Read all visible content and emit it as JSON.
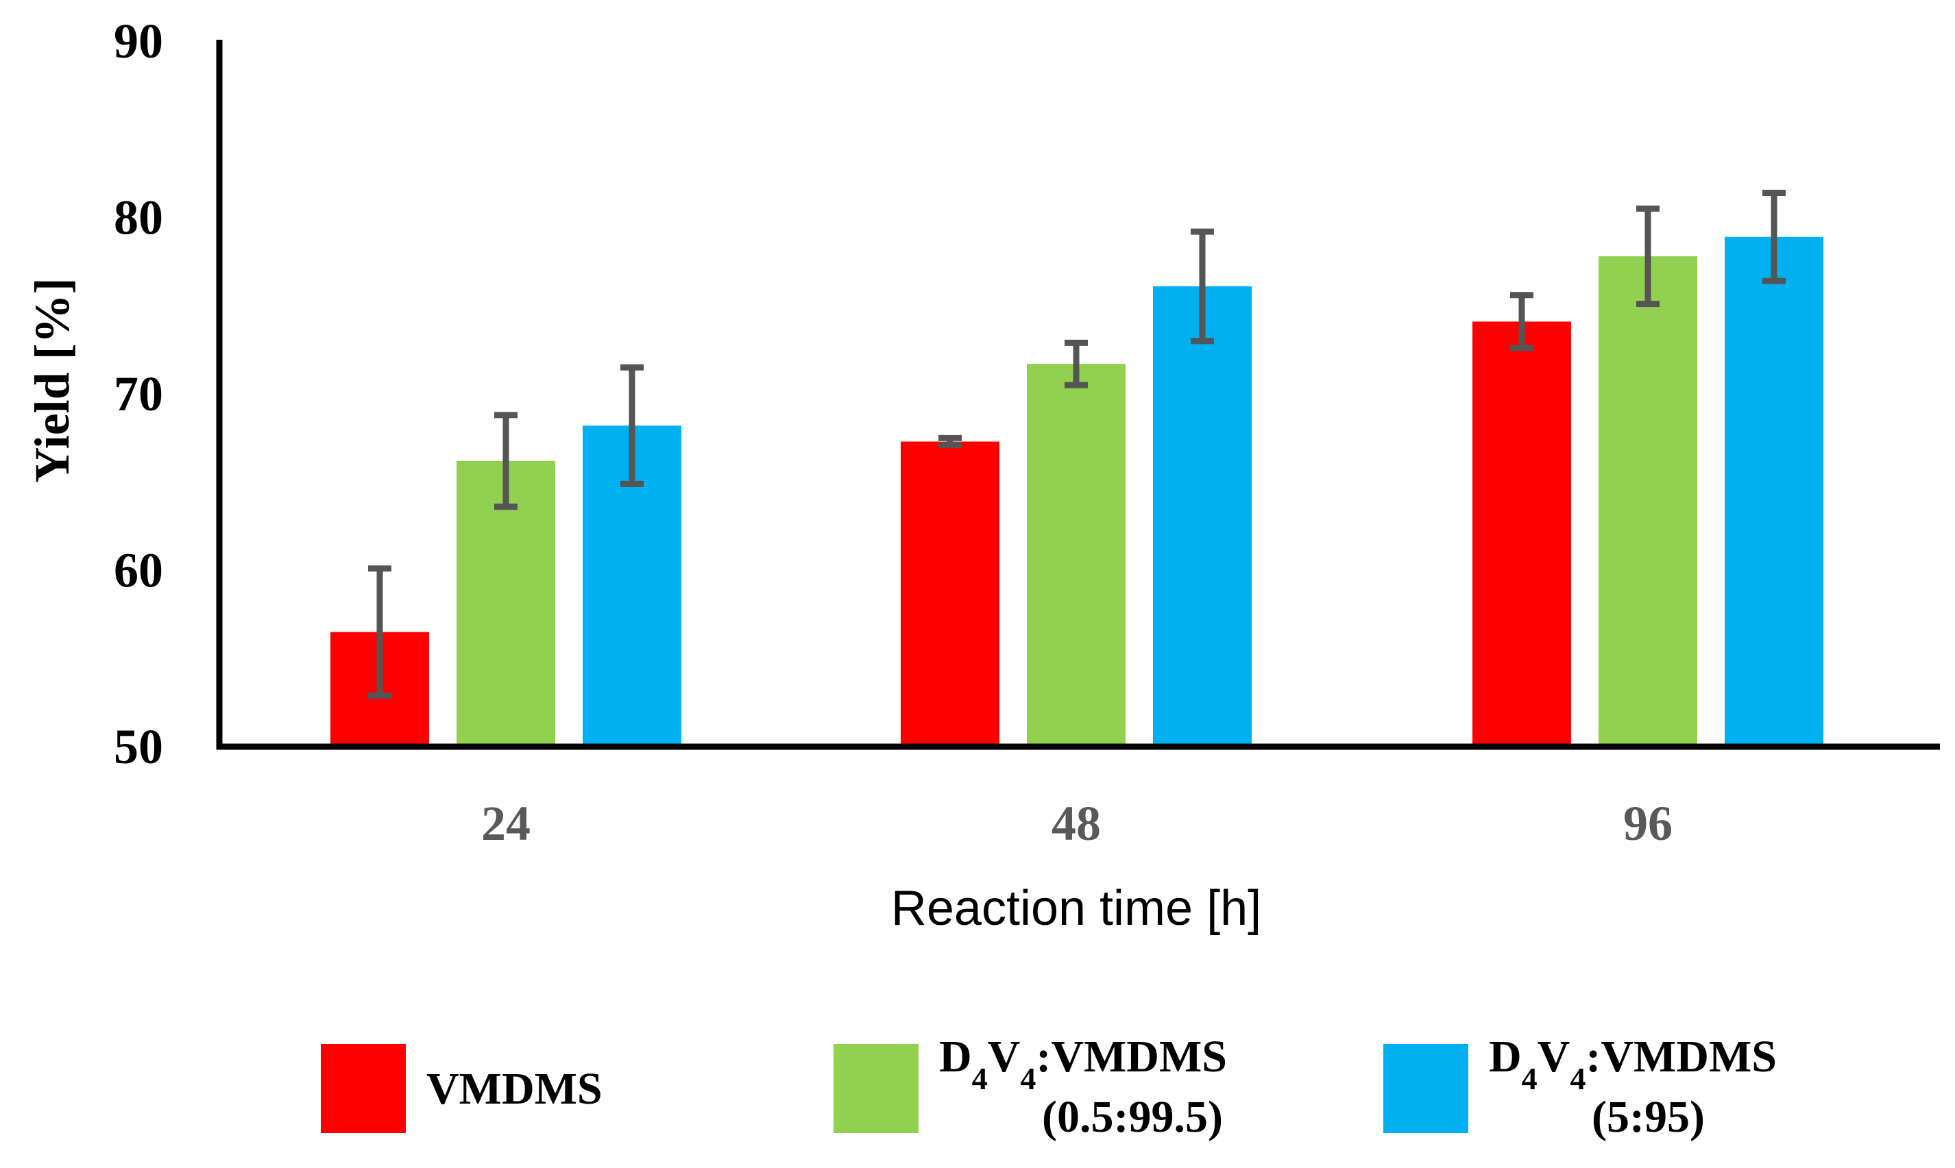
{
  "chart_data": {
    "type": "bar",
    "title": "",
    "xlabel": "Reaction time [h]",
    "ylabel": "Yield  [%]",
    "categories": [
      "24",
      "48",
      "96"
    ],
    "ylim": [
      50,
      90
    ],
    "yticks": [
      "50",
      "60",
      "70",
      "80",
      "90"
    ],
    "grid": false,
    "legend_position": "bottom",
    "series": [
      {
        "name": "VMDMS",
        "legend": {
          "line1": "VMDMS",
          "line2": ""
        },
        "color": "#ff0000",
        "values": [
          56.5,
          67.3,
          74.1
        ],
        "errors": [
          3.6,
          0.2,
          1.5
        ]
      },
      {
        "name": "D4V4:VMDMS (0.5:99.5)",
        "legend": {
          "line1": "D4V4:VMDMS",
          "line2": "(0.5:99.5)"
        },
        "color": "#92d050",
        "values": [
          66.2,
          71.7,
          77.8
        ],
        "errors": [
          2.6,
          1.2,
          2.7
        ]
      },
      {
        "name": "D4V4:VMDMS (5:95)",
        "legend": {
          "line1": "D4V4:VMDMS",
          "line2": "(5:95)"
        },
        "color": "#00b0f0",
        "values": [
          68.2,
          76.1,
          78.9
        ],
        "errors": [
          3.3,
          3.1,
          2.5
        ]
      }
    ]
  }
}
